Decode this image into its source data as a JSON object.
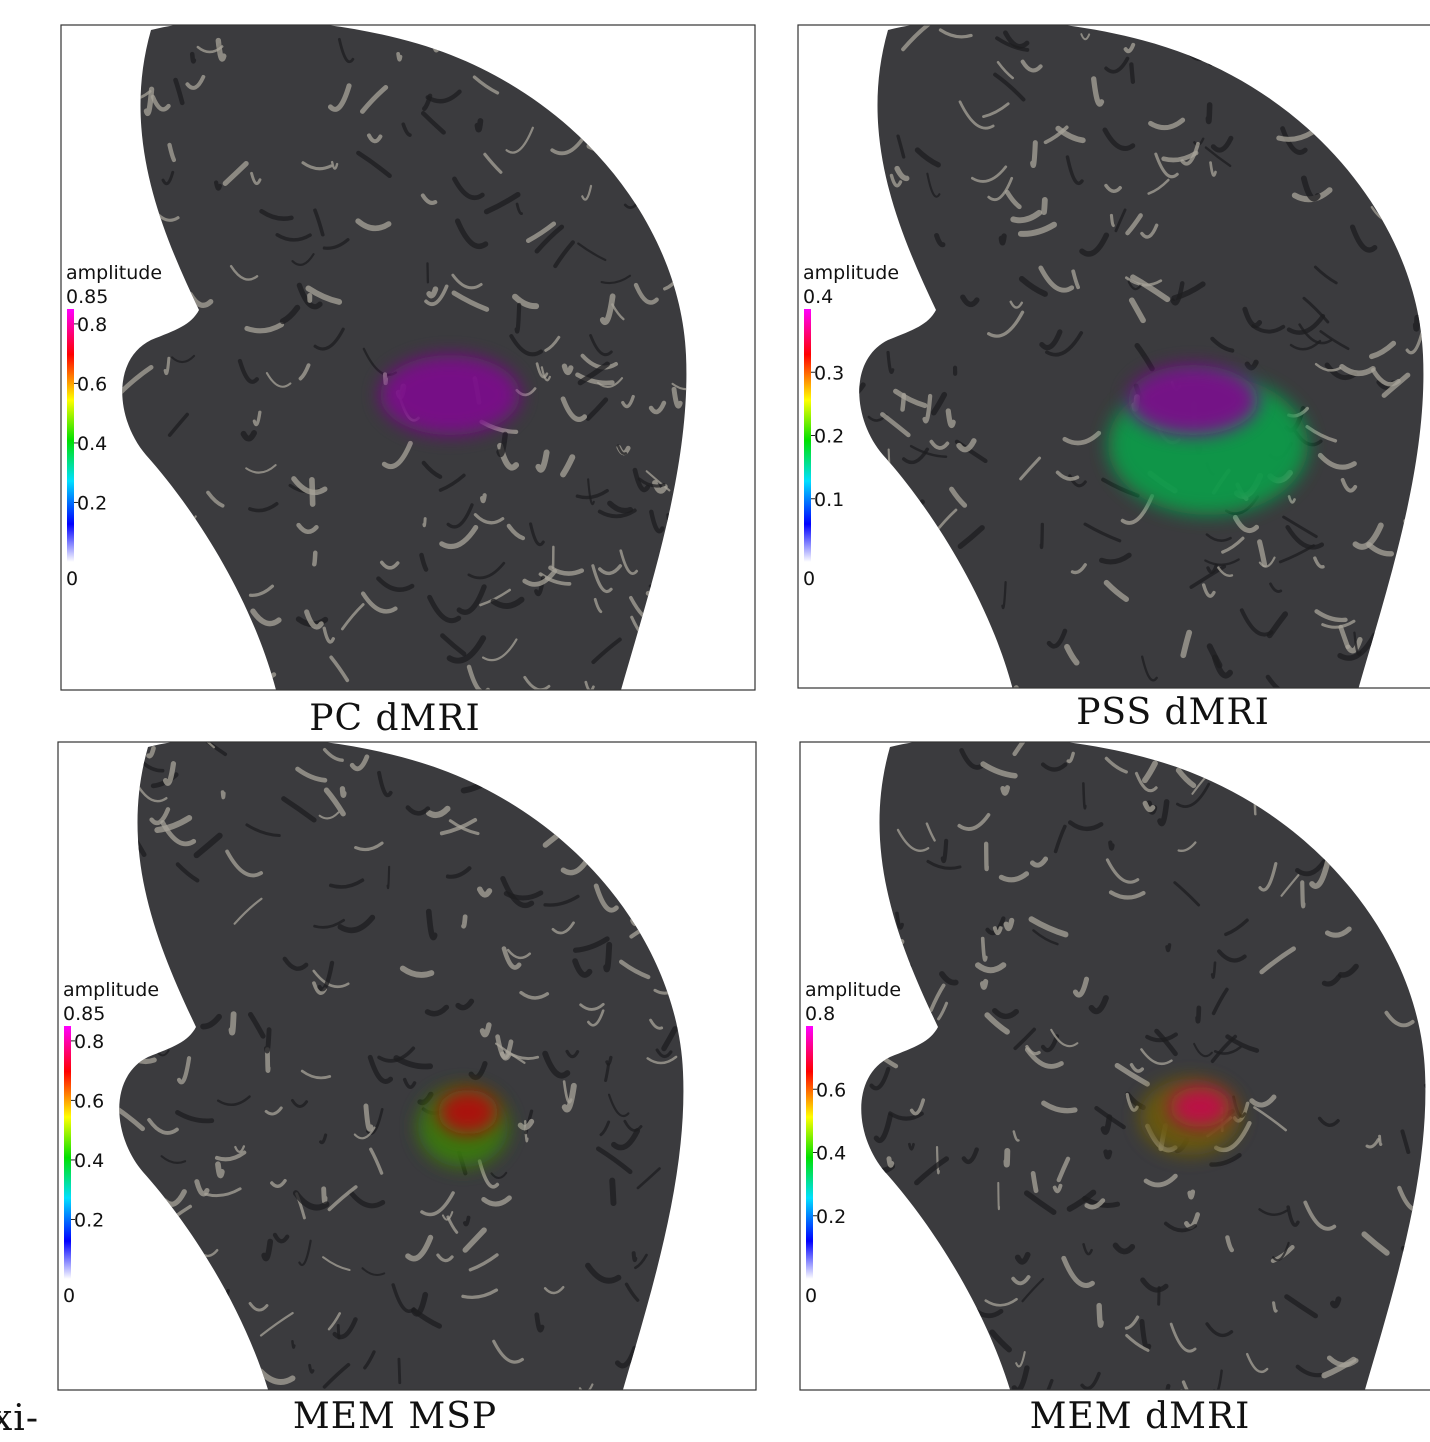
{
  "stray_text": "xi-",
  "panels": [
    {
      "caption": "PC dMRI",
      "colorbar": {
        "title": "amplitude",
        "range": [
          0,
          0.85
        ],
        "ticks": [
          0.2,
          0.4,
          0.6,
          0.8
        ]
      }
    },
    {
      "caption": "PSS dMRI",
      "colorbar": {
        "title": "amplitude",
        "range": [
          0,
          0.4
        ],
        "ticks": [
          0.1,
          0.2,
          0.3
        ]
      }
    },
    {
      "caption": "MEM MSP",
      "colorbar": {
        "title": "amplitude",
        "range": [
          0,
          0.85
        ],
        "ticks": [
          0.2,
          0.4,
          0.6,
          0.8
        ]
      }
    },
    {
      "caption": "MEM dMRI",
      "colorbar": {
        "title": "amplitude",
        "range": [
          0,
          0.8
        ],
        "ticks": [
          0.2,
          0.4,
          0.6
        ]
      }
    }
  ]
}
